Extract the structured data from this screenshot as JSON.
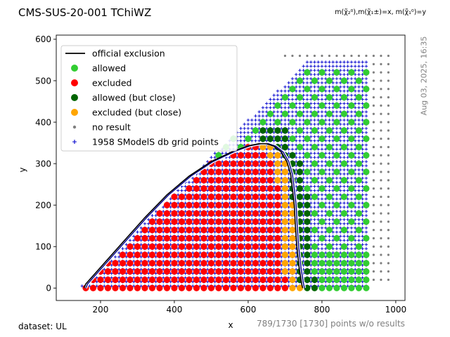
{
  "header": {
    "title": "CMS-SUS-20-001 TChiWZ",
    "formula": "m(χ̃₂⁰),m(χ̃₁±)=x, m(χ̃₁⁰)=y"
  },
  "footer": {
    "dataset": "dataset: UL",
    "points_info": "789/1730 [1730] points w/o results",
    "timestamp": "Aug 03, 2025, 16:35"
  },
  "chart_data": {
    "type": "scatter",
    "xlabel": "x",
    "ylabel": "y",
    "xlim": [
      80,
      1025
    ],
    "ylim": [
      -30,
      610
    ],
    "x_ticks": [
      200,
      400,
      600,
      800,
      1000
    ],
    "y_ticks": [
      0,
      100,
      200,
      300,
      400,
      500,
      600
    ],
    "legend_position": "top-left",
    "legend": [
      {
        "key": "official",
        "label": "official exclusion",
        "color": "#000000"
      },
      {
        "key": "allowed",
        "label": "allowed",
        "color": "#32cd32"
      },
      {
        "key": "excluded",
        "label": "excluded",
        "color": "#ff0000"
      },
      {
        "key": "close_allowed",
        "label": "allowed (but close)",
        "color": "#006400"
      },
      {
        "key": "close_excluded",
        "label": "excluded (but close)",
        "color": "#ffa500"
      },
      {
        "key": "noresult",
        "label": "no result",
        "color": "#808080"
      },
      {
        "key": "grid",
        "label": "1958 SModelS db grid points",
        "color": "#0000cd"
      }
    ],
    "point_regions": {
      "grid_x_range": [
        100,
        920
      ],
      "grid_y_range": [
        5,
        545
      ],
      "grid_step": 10,
      "noresult_x_range": [
        690,
        980
      ],
      "noresult_y_range": [
        20,
        580
      ],
      "result_step": 20
    },
    "official_exclusion": {
      "x": [
        155,
        160,
        200,
        260,
        320,
        380,
        440,
        500,
        560,
        600,
        630,
        650,
        670,
        690,
        705,
        715,
        720,
        725,
        728,
        732,
        738,
        745,
        748
      ],
      "y": [
        0,
        10,
        50,
        110,
        170,
        225,
        270,
        305,
        330,
        343,
        348,
        348,
        342,
        328,
        305,
        275,
        240,
        200,
        150,
        100,
        50,
        10,
        0
      ]
    },
    "smodels_exclusion": {
      "x": [
        160,
        165,
        205,
        265,
        325,
        385,
        445,
        505,
        565,
        605,
        635,
        655,
        675,
        695,
        710,
        720,
        725,
        730,
        733,
        737,
        743,
        750,
        753
      ],
      "y": [
        0,
        10,
        50,
        110,
        170,
        225,
        270,
        305,
        330,
        343,
        348,
        348,
        342,
        328,
        305,
        275,
        240,
        200,
        150,
        100,
        50,
        10,
        0
      ]
    }
  }
}
